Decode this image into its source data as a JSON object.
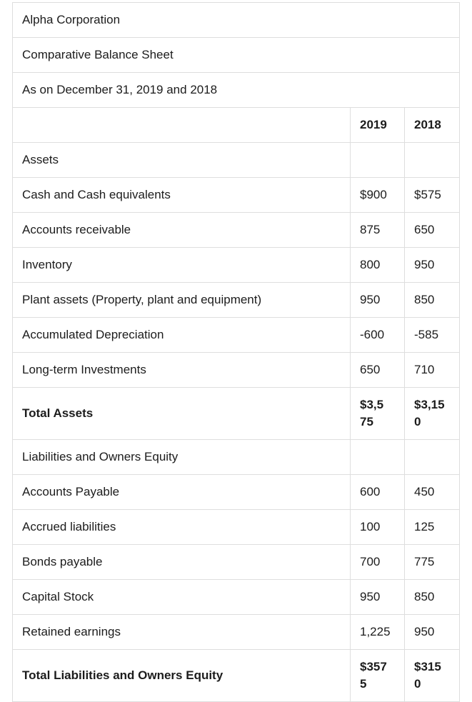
{
  "colors": {
    "background": "#ffffff",
    "border": "#dedede",
    "text": "#1c1c1c"
  },
  "table": {
    "titles": [
      "Alpha Corporation",
      "Comparative Balance Sheet",
      "As on December 31, 2019 and 2018"
    ],
    "header": {
      "label": "",
      "y2019": "2019",
      "y2018": "2018"
    },
    "rows": [
      {
        "label": "Assets",
        "v2019": "",
        "v2018": ""
      },
      {
        "label": "Cash and Cash equivalents",
        "v2019": "$900",
        "v2018": "$575"
      },
      {
        "label": "Accounts receivable",
        "v2019": "875",
        "v2018": "650"
      },
      {
        "label": "Inventory",
        "v2019": "800",
        "v2018": "950"
      },
      {
        "label": "Plant assets (Property, plant and equipment)",
        "v2019": "950",
        "v2018": "850"
      },
      {
        "label": "Accumulated Depreciation",
        "v2019": "-600",
        "v2018": "-585"
      },
      {
        "label": "Long-term Investments",
        "v2019": "650",
        "v2018": "710"
      },
      {
        "label": "Total Assets",
        "v2019": "$3,5\n75",
        "v2018": "$3,15\n0"
      },
      {
        "label": "Liabilities and Owners Equity",
        "v2019": "",
        "v2018": ""
      },
      {
        "label": "Accounts Payable",
        "v2019": "600",
        "v2018": "450"
      },
      {
        "label": "Accrued liabilities",
        "v2019": "100",
        "v2018": "125"
      },
      {
        "label": "Bonds payable",
        "v2019": "700",
        "v2018": "775"
      },
      {
        "label": "Capital Stock",
        "v2019": "950",
        "v2018": "850"
      },
      {
        "label": "Retained earnings",
        "v2019": "1,225",
        "v2018": "950"
      },
      {
        "label": "Total Liabilities and Owners Equity",
        "v2019": "$357\n5",
        "v2018": "$315\n0"
      }
    ]
  }
}
